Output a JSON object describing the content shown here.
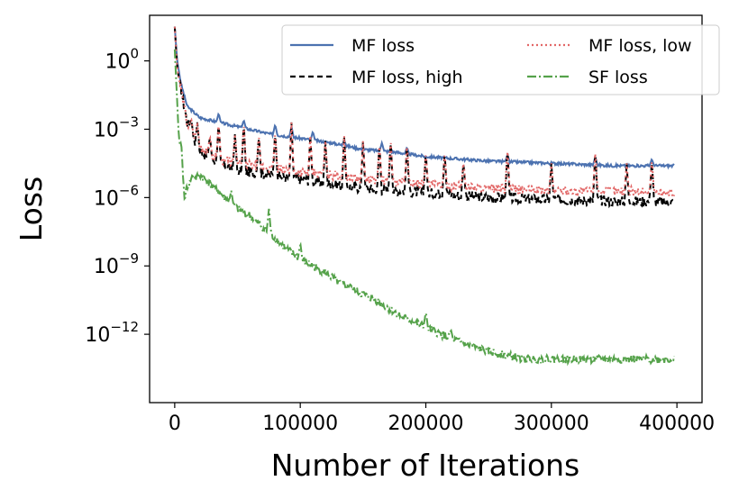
{
  "chart_data": {
    "type": "line",
    "xlabel": "Number of Iterations",
    "ylabel": "Loss",
    "yscale": "log",
    "xlim": [
      -20000,
      420000
    ],
    "ylim": [
      1e-15,
      100
    ],
    "grid": false,
    "legend_position": "top-right",
    "x_ticks": [
      {
        "value": 0,
        "label": "0"
      },
      {
        "value": 100000,
        "label": "100000"
      },
      {
        "value": 200000,
        "label": "200000"
      },
      {
        "value": 300000,
        "label": "300000"
      },
      {
        "value": 400000,
        "label": "400000"
      }
    ],
    "y_ticks": [
      {
        "value": 1,
        "base": "10",
        "exp": "0"
      },
      {
        "value": 0.001,
        "base": "10",
        "exp": "−3"
      },
      {
        "value": 1e-06,
        "base": "10",
        "exp": "−6"
      },
      {
        "value": 1e-09,
        "base": "10",
        "exp": "−9"
      },
      {
        "value": 1e-12,
        "base": "10",
        "exp": "−12"
      }
    ],
    "series": [
      {
        "name": "MF loss",
        "color": "#4c72b0",
        "dash": "solid",
        "points": [
          [
            0,
            31.6
          ],
          [
            2000,
            1.0
          ],
          [
            5000,
            0.1
          ],
          [
            10000,
            0.01
          ],
          [
            20000,
            0.0032
          ],
          [
            35000,
            0.002
          ],
          [
            50000,
            0.0013
          ],
          [
            75000,
            0.00063
          ],
          [
            100000,
            0.0004
          ],
          [
            125000,
            0.00025
          ],
          [
            150000,
            0.00013
          ],
          [
            175000,
            0.0001
          ],
          [
            200000,
            6.3e-05
          ],
          [
            250000,
            4e-05
          ],
          [
            300000,
            3.2e-05
          ],
          [
            350000,
            2.5e-05
          ],
          [
            398000,
            2.5e-05
          ]
        ],
        "spikes": [
          [
            35000,
            0.005
          ],
          [
            55000,
            0.0025
          ],
          [
            80000,
            0.0016
          ],
          [
            93000,
            0.0013
          ],
          [
            110000,
            0.0008
          ],
          [
            135000,
            0.00032
          ],
          [
            165000,
            0.00025
          ],
          [
            185000,
            0.00016
          ],
          [
            265000,
            7.9e-05
          ],
          [
            335000,
            6.3e-05
          ],
          [
            380000,
            5e-05
          ]
        ]
      },
      {
        "name": "MF loss, high",
        "color": "#000000",
        "dash": "6,4",
        "points": [
          [
            0,
            31.6
          ],
          [
            2000,
            0.5
          ],
          [
            5000,
            0.05
          ],
          [
            10000,
            0.002
          ],
          [
            20000,
            0.0001
          ],
          [
            35000,
            3.2e-05
          ],
          [
            50000,
            1.6e-05
          ],
          [
            75000,
            1e-05
          ],
          [
            100000,
            6.3e-06
          ],
          [
            125000,
            4e-06
          ],
          [
            150000,
            2.5e-06
          ],
          [
            175000,
            2e-06
          ],
          [
            200000,
            1.6e-06
          ],
          [
            250000,
            1e-06
          ],
          [
            300000,
            8e-07
          ],
          [
            350000,
            7e-07
          ],
          [
            398000,
            6.3e-07
          ]
        ],
        "spikes": [
          [
            13000,
            0.003
          ],
          [
            18000,
            0.002
          ],
          [
            28000,
            0.0005
          ],
          [
            35000,
            0.002
          ],
          [
            48000,
            0.0006
          ],
          [
            55000,
            0.002
          ],
          [
            67000,
            0.0006
          ],
          [
            80000,
            0.0008
          ],
          [
            93000,
            0.002
          ],
          [
            108000,
            0.0005
          ],
          [
            120000,
            0.0003
          ],
          [
            135000,
            0.0005
          ],
          [
            150000,
            0.0003
          ],
          [
            163000,
            0.00025
          ],
          [
            172000,
            0.0004
          ],
          [
            185000,
            0.00025
          ],
          [
            200000,
            0.0001
          ],
          [
            215000,
            0.0001
          ],
          [
            230000,
            4e-05
          ],
          [
            265000,
            0.00016
          ],
          [
            300000,
            3.2e-05
          ],
          [
            335000,
            0.00013
          ],
          [
            360000,
            3.2e-05
          ],
          [
            380000,
            5e-05
          ]
        ]
      },
      {
        "name": "MF loss, low",
        "color": "#e26868",
        "dash": "2,3",
        "points": [
          [
            0,
            31.6
          ],
          [
            2000,
            0.5
          ],
          [
            5000,
            0.05
          ],
          [
            10000,
            0.002
          ],
          [
            20000,
            0.00016
          ],
          [
            35000,
            5e-05
          ],
          [
            50000,
            3.2e-05
          ],
          [
            75000,
            2e-05
          ],
          [
            100000,
            1.3e-05
          ],
          [
            125000,
            1e-05
          ],
          [
            150000,
            6.3e-06
          ],
          [
            175000,
            5e-06
          ],
          [
            200000,
            4e-06
          ],
          [
            250000,
            2.5e-06
          ],
          [
            300000,
            2e-06
          ],
          [
            350000,
            2e-06
          ],
          [
            398000,
            1.6e-06
          ]
        ],
        "spikes": [
          [
            13000,
            0.003
          ],
          [
            18000,
            0.002
          ],
          [
            28000,
            0.0005
          ],
          [
            35000,
            0.002
          ],
          [
            48000,
            0.0006
          ],
          [
            55000,
            0.002
          ],
          [
            67000,
            0.0006
          ],
          [
            80000,
            0.0008
          ],
          [
            93000,
            0.002
          ],
          [
            108000,
            0.0005
          ],
          [
            120000,
            0.0003
          ],
          [
            135000,
            0.0005
          ],
          [
            150000,
            0.0003
          ],
          [
            163000,
            0.00025
          ],
          [
            172000,
            0.0004
          ],
          [
            185000,
            0.00025
          ],
          [
            200000,
            0.0001
          ],
          [
            215000,
            0.0001
          ],
          [
            230000,
            4e-05
          ],
          [
            265000,
            0.00016
          ],
          [
            300000,
            3.2e-05
          ],
          [
            335000,
            0.00013
          ],
          [
            360000,
            3.2e-05
          ],
          [
            380000,
            5e-05
          ]
        ]
      },
      {
        "name": "SF loss",
        "color": "#55a24a",
        "dash": "10,3,2,3",
        "points": [
          [
            0,
            3.2
          ],
          [
            3000,
            0.001
          ],
          [
            5000,
            3.2e-05
          ],
          [
            8000,
            1e-06
          ],
          [
            10000,
            3.2e-06
          ],
          [
            20000,
            1e-05
          ],
          [
            30000,
            3.2e-06
          ],
          [
            40000,
            1e-06
          ],
          [
            50000,
            3.2e-07
          ],
          [
            60000,
            1.6e-07
          ],
          [
            70000,
            5e-08
          ],
          [
            80000,
            1.6e-08
          ],
          [
            90000,
            5e-09
          ],
          [
            100000,
            2e-09
          ],
          [
            120000,
            5e-10
          ],
          [
            130000,
            2e-10
          ],
          [
            140000,
            1e-10
          ],
          [
            160000,
            3.2e-11
          ],
          [
            180000,
            6.3e-12
          ],
          [
            200000,
            2e-12
          ],
          [
            220000,
            6.3e-13
          ],
          [
            240000,
            2.5e-13
          ],
          [
            260000,
            1.3e-13
          ],
          [
            280000,
            8e-14
          ],
          [
            300000,
            8e-14
          ],
          [
            350000,
            8e-14
          ],
          [
            398000,
            8e-14
          ]
        ],
        "spikes": [
          [
            5000,
            0.0003
          ],
          [
            9000,
            6e-08
          ],
          [
            14000,
            1e-05
          ],
          [
            45000,
            2e-06
          ],
          [
            75000,
            3.2e-07
          ],
          [
            100000,
            1e-08
          ],
          [
            140000,
            1.6e-10
          ],
          [
            200000,
            1e-11
          ],
          [
            220000,
            1.6e-12
          ]
        ]
      }
    ]
  }
}
